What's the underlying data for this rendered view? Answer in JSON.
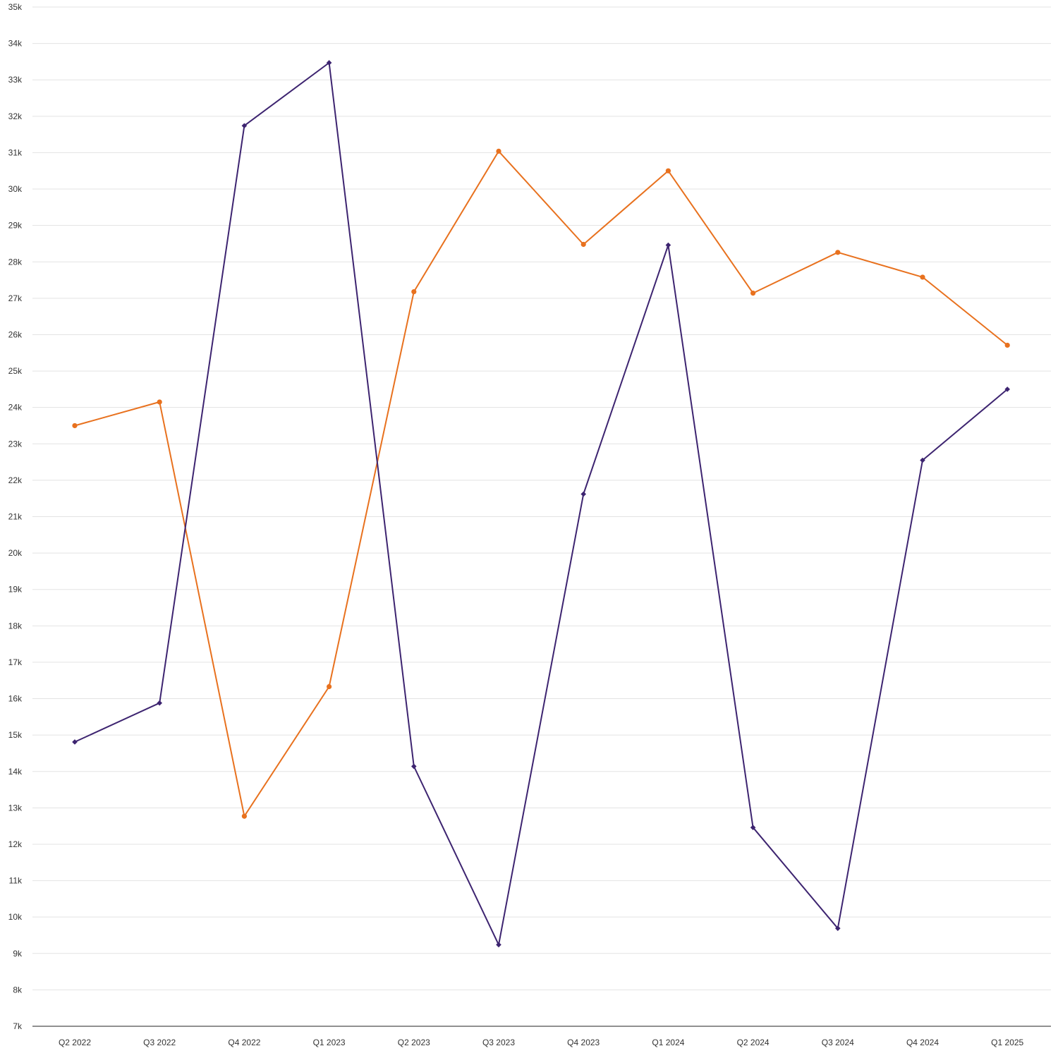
{
  "chart_data": {
    "type": "line",
    "title": "",
    "xlabel": "",
    "ylabel": "",
    "categories": [
      "Q2 2022",
      "Q3 2022",
      "Q4 2022",
      "Q1 2023",
      "Q2 2023",
      "Q3 2023",
      "Q4 2023",
      "Q1 2024",
      "Q2 2024",
      "Q3 2024",
      "Q4 2024",
      "Q1 2025"
    ],
    "ylim": [
      7000,
      35000
    ],
    "y_ticks": [
      7000,
      8000,
      9000,
      10000,
      11000,
      12000,
      13000,
      14000,
      15000,
      16000,
      17000,
      18000,
      19000,
      20000,
      21000,
      22000,
      23000,
      24000,
      25000,
      26000,
      27000,
      28000,
      29000,
      30000,
      31000,
      32000,
      33000,
      34000,
      35000
    ],
    "y_tick_labels": [
      "7k",
      "8k",
      "9k",
      "10k",
      "11k",
      "12k",
      "13k",
      "14k",
      "15k",
      "16k",
      "17k",
      "18k",
      "19k",
      "20k",
      "21k",
      "22k",
      "23k",
      "24k",
      "25k",
      "26k",
      "27k",
      "28k",
      "29k",
      "30k",
      "31k",
      "32k",
      "33k",
      "34k",
      "35k"
    ],
    "grid": true,
    "legend": "none",
    "series": [
      {
        "color": "#e8711e",
        "marker": "circle",
        "values": [
          23500,
          24150,
          12770,
          16330,
          27180,
          31040,
          28480,
          30500,
          27140,
          28260,
          27580,
          25710
        ]
      },
      {
        "color": "#3d2470",
        "marker": "diamond",
        "values": [
          14810,
          15880,
          31740,
          33470,
          14140,
          9240,
          21620,
          28460,
          12460,
          9690,
          22550,
          24500
        ]
      }
    ]
  }
}
